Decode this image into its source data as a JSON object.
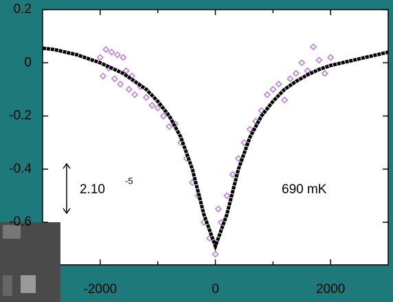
{
  "chart_data": {
    "type": "scatter",
    "xlim": [
      -3000,
      3000
    ],
    "xticks": [
      -2000,
      0,
      2000
    ],
    "xminorticks": [
      -1000,
      1000
    ],
    "ylim": [
      -0.76,
      0.2
    ],
    "yticks": [
      0.2,
      0,
      -0.2,
      -0.4,
      -0.6
    ],
    "annotations": {
      "scale": "2.10",
      "scale_exponent": "-5",
      "temperature": "690 mK"
    },
    "series": [
      {
        "style": "markers",
        "color": "#c27be0",
        "x": [
          -2000,
          -1950,
          -1900,
          -1850,
          -1800,
          -1750,
          -1700,
          -1650,
          -1600,
          -1550,
          -1500,
          -1450,
          -1400,
          -1300,
          -1200,
          -1100,
          -1000,
          -900,
          -800,
          -700,
          -600,
          -500,
          -400,
          -300,
          -200,
          -100,
          0,
          50,
          100,
          200,
          300,
          400,
          500,
          600,
          700,
          800,
          900,
          1000,
          1100,
          1200,
          1300,
          1400,
          1500,
          1600,
          1700,
          1800,
          1900,
          2000
        ],
        "values": [
          0.02,
          -0.05,
          0.05,
          -0.02,
          0.04,
          -0.06,
          0.03,
          -0.08,
          0.02,
          -0.03,
          -0.1,
          -0.05,
          -0.12,
          -0.09,
          -0.13,
          -0.16,
          -0.17,
          -0.2,
          -0.24,
          -0.23,
          -0.3,
          -0.36,
          -0.45,
          -0.5,
          -0.6,
          -0.66,
          -0.72,
          -0.55,
          -0.6,
          -0.5,
          -0.42,
          -0.36,
          -0.3,
          -0.25,
          -0.22,
          -0.18,
          -0.12,
          -0.1,
          -0.08,
          -0.14,
          -0.06,
          -0.04,
          0.0,
          -0.03,
          0.06,
          0.01,
          -0.04,
          0.02
        ]
      },
      {
        "style": "line",
        "color": "#000000",
        "x": [
          -3000,
          -2800,
          -2600,
          -2400,
          -2200,
          -2000,
          -1800,
          -1600,
          -1400,
          -1200,
          -1000,
          -800,
          -600,
          -400,
          -200,
          0,
          200,
          400,
          600,
          800,
          1000,
          1200,
          1400,
          1600,
          1800,
          2000,
          2200,
          2400,
          2600,
          2800,
          3000
        ],
        "values": [
          0.055,
          0.05,
          0.04,
          0.03,
          0.015,
          0.0,
          -0.02,
          -0.04,
          -0.07,
          -0.1,
          -0.145,
          -0.2,
          -0.28,
          -0.4,
          -0.57,
          -0.69,
          -0.57,
          -0.4,
          -0.28,
          -0.2,
          -0.145,
          -0.1,
          -0.07,
          -0.045,
          -0.025,
          -0.01,
          0.0,
          0.01,
          0.02,
          0.03,
          0.04
        ]
      }
    ]
  }
}
